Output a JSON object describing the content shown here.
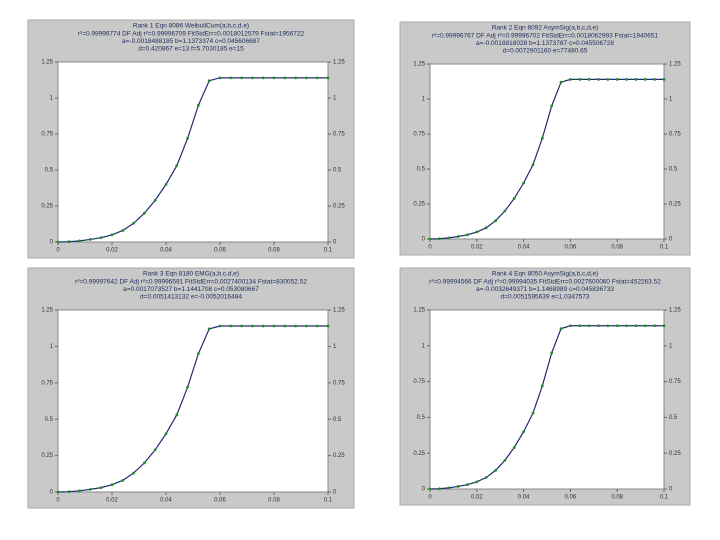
{
  "chart_data": [
    {
      "type": "line",
      "title": "Rank 1  Eqn 8086  WeibullCum(a,b,c,d,e)",
      "stats": [
        "r²=0.99996774  DF Adj r²=0.99996709  FitStdErr=0.0018012579  Fstat=1956722",
        "a=-0.0018488185 b=1.1373374 c=0.045606687",
        "d=0.420867 e=13 f=5.7030185 e=15"
      ],
      "x": [
        0,
        0.004,
        0.008,
        0.012,
        0.016,
        0.02,
        0.024,
        0.028,
        0.032,
        0.036,
        0.04,
        0.044,
        0.048,
        0.052,
        0.056,
        0.06,
        0.064,
        0.068,
        0.072,
        0.076,
        0.08,
        0.084,
        0.088,
        0.092,
        0.096,
        0.1
      ],
      "series": [
        {
          "color": "#1f8a2a",
          "values": [
            0,
            0.002,
            0.008,
            0.018,
            0.03,
            0.05,
            0.08,
            0.13,
            0.2,
            0.29,
            0.4,
            0.53,
            0.72,
            0.95,
            1.12,
            1.14,
            1.14,
            1.14,
            1.14,
            1.14,
            1.14,
            1.14,
            1.14,
            1.14,
            1.14,
            1.14
          ]
        }
      ],
      "curve_color": "#222a70",
      "xlim": [
        0,
        0.1
      ],
      "ylim": [
        0,
        1.25
      ],
      "y2lim": [
        0,
        1.25
      ],
      "xticks": [
        0,
        0.02,
        0.04,
        0.06,
        0.08,
        0.1
      ],
      "yticks": [
        0,
        0.25,
        0.5,
        0.75,
        1,
        1.25
      ],
      "y2ticks": [
        0,
        0.25,
        0.5,
        0.75,
        1,
        1.25
      ]
    },
    {
      "type": "line",
      "title": "Rank 2  Eqn 8092  AsymSig(a,b,c,d,e)",
      "stats": [
        "r²=0.99996767  DF Adj r²=0.99996702  FitStdErr=0.0018062993  Fstat=1940651",
        "a=-0.0018818028 b=1.1373787 c=0.045506728",
        "d=0.0072901160 e=77480.65"
      ],
      "x": [
        0,
        0.004,
        0.008,
        0.012,
        0.016,
        0.02,
        0.024,
        0.028,
        0.032,
        0.036,
        0.04,
        0.044,
        0.048,
        0.052,
        0.056,
        0.06,
        0.064,
        0.068,
        0.072,
        0.076,
        0.08,
        0.084,
        0.088,
        0.092,
        0.096,
        0.1
      ],
      "series": [
        {
          "color": "#1f8a2a",
          "values": [
            0,
            0.002,
            0.008,
            0.018,
            0.03,
            0.05,
            0.08,
            0.13,
            0.2,
            0.29,
            0.4,
            0.53,
            0.72,
            0.95,
            1.12,
            1.14,
            1.14,
            1.14,
            1.14,
            1.14,
            1.14,
            1.14,
            1.14,
            1.14,
            1.14,
            1.14
          ]
        }
      ],
      "curve_color": "#222a70",
      "xlim": [
        0,
        0.1
      ],
      "ylim": [
        0,
        1.25
      ],
      "y2lim": [
        0,
        1.25
      ],
      "xticks": [
        0,
        0.02,
        0.04,
        0.06,
        0.08,
        0.1
      ],
      "yticks": [
        0,
        0.25,
        0.5,
        0.75,
        1,
        1.25
      ],
      "y2ticks": [
        0,
        0.25,
        0.5,
        0.75,
        1,
        1.25
      ]
    },
    {
      "type": "line",
      "title": "Rank 3  Eqn 8180  EMG(a,b,c,d,e)",
      "stats": [
        "r²=0.99997642  DF Adj r²=0.99996591  FitStdErr=0.0027400134  Fstat=830052.52",
        "a=0.0017073527 b=1.1441708 c=0.053080667",
        "d=0.0051413132 e=-0.0052016484"
      ],
      "x": [
        0,
        0.004,
        0.008,
        0.012,
        0.016,
        0.02,
        0.024,
        0.028,
        0.032,
        0.036,
        0.04,
        0.044,
        0.048,
        0.052,
        0.056,
        0.06,
        0.064,
        0.068,
        0.072,
        0.076,
        0.08,
        0.084,
        0.088,
        0.092,
        0.096,
        0.1
      ],
      "series": [
        {
          "color": "#1f8a2a",
          "values": [
            0,
            0.002,
            0.008,
            0.018,
            0.03,
            0.05,
            0.08,
            0.13,
            0.2,
            0.29,
            0.4,
            0.53,
            0.72,
            0.95,
            1.12,
            1.14,
            1.14,
            1.14,
            1.14,
            1.14,
            1.14,
            1.14,
            1.14,
            1.14,
            1.14,
            1.14
          ]
        }
      ],
      "curve_color": "#222a70",
      "xlim": [
        0,
        0.1
      ],
      "ylim": [
        0,
        1.25
      ],
      "y2lim": [
        0,
        1.25
      ],
      "xticks": [
        0,
        0.02,
        0.04,
        0.06,
        0.08,
        0.1
      ],
      "yticks": [
        0,
        0.25,
        0.5,
        0.75,
        1,
        1.25
      ],
      "y2ticks": [
        0,
        0.25,
        0.5,
        0.75,
        1,
        1.25
      ]
    },
    {
      "type": "line",
      "title": "Rank 4  Eqn 8050  AsymSig(a,b,c,d,e)",
      "stats": [
        "r²=0.99994566  DF Adj r²=0.99994035  FitStdErr=0.0027600060  Fstat=452263.52",
        "a=-0.0032649371 b=1.1468989 c=0.045836733",
        "d=0.0051595639 e=1.0347573"
      ],
      "x": [
        0,
        0.004,
        0.008,
        0.012,
        0.016,
        0.02,
        0.024,
        0.028,
        0.032,
        0.036,
        0.04,
        0.044,
        0.048,
        0.052,
        0.056,
        0.06,
        0.064,
        0.068,
        0.072,
        0.076,
        0.08,
        0.084,
        0.088,
        0.092,
        0.096,
        0.1
      ],
      "series": [
        {
          "color": "#1f8a2a",
          "values": [
            0,
            0.002,
            0.008,
            0.018,
            0.03,
            0.05,
            0.08,
            0.13,
            0.2,
            0.29,
            0.4,
            0.53,
            0.72,
            0.95,
            1.12,
            1.14,
            1.14,
            1.14,
            1.14,
            1.14,
            1.14,
            1.14,
            1.14,
            1.14,
            1.14,
            1.14
          ]
        }
      ],
      "curve_color": "#222a70",
      "xlim": [
        0,
        0.1
      ],
      "ylim": [
        0,
        1.25
      ],
      "y2lim": [
        0,
        1.25
      ],
      "xticks": [
        0,
        0.02,
        0.04,
        0.06,
        0.08,
        0.1
      ],
      "yticks": [
        0,
        0.25,
        0.5,
        0.75,
        1,
        1.25
      ],
      "y2ticks": [
        0,
        0.25,
        0.5,
        0.75,
        1,
        1.25
      ]
    }
  ]
}
